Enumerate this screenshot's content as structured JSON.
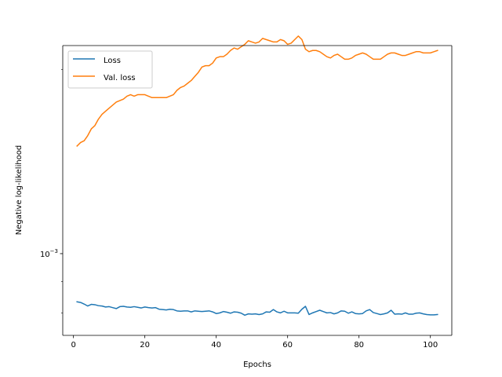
{
  "chart_data": {
    "type": "line",
    "title": "",
    "xlabel": "Epochs",
    "ylabel": "Negative log-likelihood",
    "yscale": "log",
    "xlim": [
      -3,
      106
    ],
    "ylim": [
      0.000735,
      0.00219
    ],
    "xticks": [
      0,
      20,
      40,
      60,
      80,
      100
    ],
    "xtick_labels": [
      "0",
      "20",
      "40",
      "60",
      "80",
      "100"
    ],
    "yticks": [
      0.001
    ],
    "ytick_labels": [
      "10",
      "−3"
    ],
    "grid": false,
    "legend": "upper-left",
    "series": [
      {
        "name": "Loss",
        "color": "#1f77b4",
        "x": [
          1,
          2,
          3,
          4,
          5,
          6,
          7,
          8,
          9,
          10,
          11,
          12,
          13,
          14,
          15,
          16,
          17,
          18,
          19,
          20,
          21,
          22,
          23,
          24,
          25,
          26,
          27,
          28,
          29,
          30,
          31,
          32,
          33,
          34,
          35,
          36,
          37,
          38,
          39,
          40,
          41,
          42,
          43,
          44,
          45,
          46,
          47,
          48,
          49,
          50,
          51,
          52,
          53,
          54,
          55,
          56,
          57,
          58,
          59,
          60,
          61,
          62,
          63,
          64,
          65,
          66,
          67,
          68,
          69,
          70,
          71,
          72,
          73,
          74,
          75,
          76,
          77,
          78,
          79,
          80,
          81,
          82,
          83,
          84,
          85,
          86,
          87,
          88,
          89,
          90,
          91,
          92,
          93,
          94,
          95,
          96,
          97,
          98,
          99,
          100,
          101,
          102
        ],
        "values": [
          0.000834,
          0.000832,
          0.000827,
          0.000821,
          0.000826,
          0.000825,
          0.000822,
          0.000821,
          0.000818,
          0.000819,
          0.000816,
          0.000813,
          0.000819,
          0.00082,
          0.000818,
          0.000817,
          0.000819,
          0.000817,
          0.000815,
          0.000818,
          0.000816,
          0.000815,
          0.000816,
          0.000811,
          0.00081,
          0.000809,
          0.000811,
          0.00081,
          0.000806,
          0.000805,
          0.000806,
          0.000806,
          0.000803,
          0.000806,
          0.000805,
          0.000804,
          0.000805,
          0.000806,
          0.000803,
          0.000798,
          0.0008,
          0.000804,
          0.000802,
          0.000799,
          0.000803,
          0.000802,
          0.000799,
          0.000793,
          0.000797,
          0.000796,
          0.000797,
          0.000795,
          0.000797,
          0.000803,
          0.000802,
          0.00081,
          0.000803,
          0.0008,
          0.000805,
          0.0008,
          0.0008,
          0.0008,
          0.000799,
          0.000811,
          0.00082,
          0.000795,
          0.0008,
          0.000804,
          0.000808,
          0.000804,
          0.0008,
          0.000801,
          0.000797,
          0.0008,
          0.000806,
          0.000805,
          0.000799,
          0.000803,
          0.000798,
          0.000797,
          0.000798,
          0.000806,
          0.00081,
          0.000801,
          0.000798,
          0.000795,
          0.000797,
          0.0008,
          0.000808,
          0.000796,
          0.000797,
          0.000796,
          0.0008,
          0.000796,
          0.000796,
          0.000799,
          0.0008,
          0.000797,
          0.000795,
          0.000794,
          0.000794,
          0.000795
        ]
      },
      {
        "name": "Val. loss",
        "color": "#ff7f0e",
        "x": [
          1,
          2,
          3,
          4,
          5,
          6,
          7,
          8,
          9,
          10,
          11,
          12,
          13,
          14,
          15,
          16,
          17,
          18,
          19,
          20,
          21,
          22,
          23,
          24,
          25,
          26,
          27,
          28,
          29,
          30,
          31,
          32,
          33,
          34,
          35,
          36,
          37,
          38,
          39,
          40,
          41,
          42,
          43,
          44,
          45,
          46,
          47,
          48,
          49,
          50,
          51,
          52,
          53,
          54,
          55,
          56,
          57,
          58,
          59,
          60,
          61,
          62,
          63,
          64,
          65,
          66,
          67,
          68,
          69,
          70,
          71,
          72,
          73,
          74,
          75,
          76,
          77,
          78,
          79,
          80,
          81,
          82,
          83,
          84,
          85,
          86,
          87,
          88,
          89,
          90,
          91,
          92,
          93,
          94,
          95,
          96,
          97,
          98,
          99,
          100,
          101,
          102
        ],
        "values": [
          0.0015,
          0.00152,
          0.00153,
          0.00156,
          0.0016,
          0.00162,
          0.00166,
          0.00169,
          0.00171,
          0.00173,
          0.00175,
          0.00177,
          0.00178,
          0.00179,
          0.00181,
          0.00182,
          0.00181,
          0.00182,
          0.00182,
          0.00182,
          0.00181,
          0.0018,
          0.0018,
          0.0018,
          0.0018,
          0.0018,
          0.00181,
          0.00182,
          0.00185,
          0.00187,
          0.00188,
          0.0019,
          0.00192,
          0.00195,
          0.00198,
          0.00202,
          0.00203,
          0.00203,
          0.00205,
          0.00209,
          0.0021,
          0.0021,
          0.00212,
          0.00215,
          0.00217,
          0.00216,
          0.00218,
          0.0022,
          0.00223,
          0.00222,
          0.00221,
          0.00222,
          0.00225,
          0.00224,
          0.00223,
          0.00222,
          0.00222,
          0.00224,
          0.00223,
          0.0022,
          0.00221,
          0.00224,
          0.00227,
          0.00224,
          0.00216,
          0.00214,
          0.00215,
          0.00215,
          0.00214,
          0.00212,
          0.0021,
          0.00209,
          0.00211,
          0.00212,
          0.0021,
          0.00208,
          0.00208,
          0.00209,
          0.00211,
          0.00212,
          0.00213,
          0.00212,
          0.0021,
          0.00208,
          0.00208,
          0.00208,
          0.0021,
          0.00212,
          0.00213,
          0.00213,
          0.00212,
          0.00211,
          0.00211,
          0.00212,
          0.00213,
          0.00214,
          0.00214,
          0.00213,
          0.00213,
          0.00213,
          0.00214,
          0.00215
        ]
      }
    ]
  }
}
